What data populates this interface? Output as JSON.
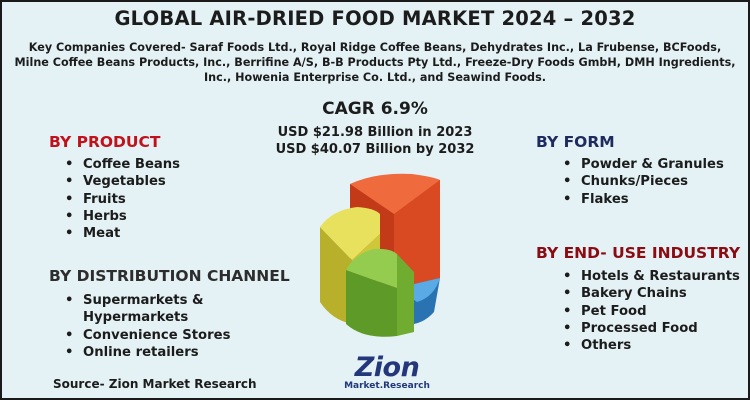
{
  "title": "GLOBAL AIR-DRIED FOOD MARKET 2024 – 2032",
  "companies_text": "Key Companies Covered- Saraf Foods Ltd., Royal Ridge Coffee Beans, Dehydrates Inc., La Frubense, BCFoods, Milne Coffee Beans Products, Inc., Berrifine A/S, B-B Products Pty Ltd., Freeze-Dry Foods GmbH, DMH Ingredients, Inc., Howenia Enterprise Co. Ltd., and Seawind Foods.",
  "cagr": "CAGR 6.9%",
  "usd_2023": "USD $21.98 Billion in 2023",
  "usd_2032": "USD $40.07 Billion by 2032",
  "by_product": {
    "title": "BY PRODUCT",
    "items": [
      "Coffee Beans",
      "Vegetables",
      "Fruits",
      "Herbs",
      "Meat"
    ]
  },
  "by_distribution": {
    "title": "BY DISTRIBUTION CHANNEL",
    "items": [
      "Supermarkets &",
      "Hypermarkets",
      "Convenience Stores",
      "Online retailers"
    ]
  },
  "by_form": {
    "title": "BY FORM",
    "items": [
      "Powder & Granules",
      "Chunks/Pieces",
      "Flakes"
    ]
  },
  "by_end_use": {
    "title": "BY END- USE INDUSTRY",
    "items": [
      "Hotels & Restaurants",
      "Bakery Chains",
      "Pet Food",
      "Processed Food",
      "Others"
    ]
  },
  "source": "Source- Zion Market Research",
  "logo": {
    "main": "Zion",
    "sub": "Market.Research"
  },
  "colors": {
    "background": "#e4f2f5",
    "red_heading": "#c1121c",
    "navy_heading": "#1f2b5e",
    "maroon_heading": "#8a0c12",
    "pie_orange": "#e8562a",
    "pie_yellow": "#d8d240",
    "pie_green": "#7cbb3a",
    "pie_blue": "#3a8fd0"
  }
}
